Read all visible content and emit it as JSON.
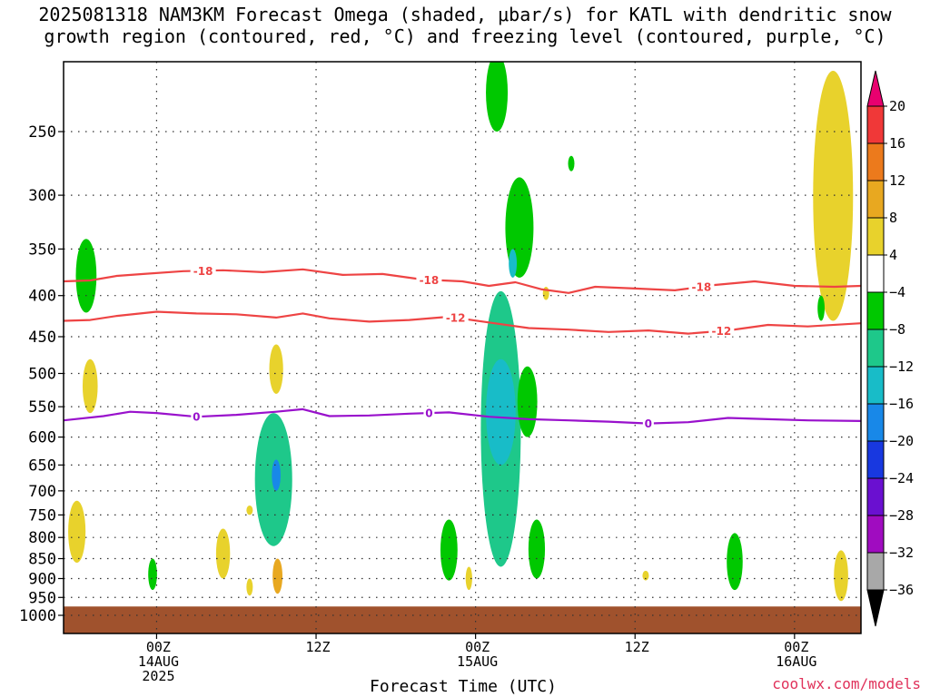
{
  "title": {
    "line1": "2025081318 NAM3KM Forecast Omega (shaded, μbar/s) for KATL with dendritic snow",
    "line2": "growth region (contoured, red, °C) and freezing level (contoured, purple, °C)"
  },
  "credit": "coolwx.com/models",
  "chart_data": {
    "type": "contour",
    "xlabel": "Forecast Time (UTC)",
    "ylabel": "",
    "y_axis": {
      "scale": "log",
      "inverted": true,
      "ylim": [
        1000,
        200
      ],
      "tick_values": [
        250,
        300,
        350,
        400,
        450,
        500,
        550,
        600,
        650,
        700,
        750,
        800,
        850,
        900,
        950,
        1000
      ],
      "tick_labels": [
        "250",
        "300",
        "350",
        "400",
        "450",
        "500",
        "550",
        "600",
        "650",
        "700",
        "750",
        "800",
        "850",
        "900",
        "950",
        "1000"
      ]
    },
    "x_axis": {
      "xlim_hours": [
        -7,
        53
      ],
      "ticks": [
        {
          "hour": 0,
          "label": [
            "00Z",
            "14AUG",
            "2025"
          ]
        },
        {
          "hour": 12,
          "label": [
            "12Z"
          ]
        },
        {
          "hour": 24,
          "label": [
            "00Z",
            "15AUG"
          ]
        },
        {
          "hour": 36,
          "label": [
            "12Z"
          ]
        },
        {
          "hour": 48,
          "label": [
            "00Z",
            "16AUG"
          ]
        }
      ]
    },
    "grid": true,
    "colorbar": {
      "labels": [
        "20",
        "16",
        "12",
        "8",
        "4",
        "−4",
        "−8",
        "−12",
        "−16",
        "−20",
        "−24",
        "−28",
        "−32",
        "−36"
      ],
      "colors": [
        "#e8006f",
        "#f03838",
        "#ec7a1c",
        "#e8a820",
        "#e8d22c",
        "#ffffff",
        "#00c800",
        "#1ec88a",
        "#18bcc8",
        "#1888e8",
        "#1838e0",
        "#6a10d0",
        "#a00cc0",
        "#a8a8a8",
        "#000000"
      ]
    },
    "contours": [
      {
        "field": "temperature",
        "value": -18,
        "color": "#ee4444",
        "points": [
          [
            -7,
            384
          ],
          [
            -5,
            383
          ],
          [
            -3,
            378
          ],
          [
            -1,
            376
          ],
          [
            2,
            373
          ],
          [
            5,
            372
          ],
          [
            8,
            374
          ],
          [
            11,
            371
          ],
          [
            14,
            377
          ],
          [
            17,
            376
          ],
          [
            20,
            382
          ],
          [
            23,
            384
          ],
          [
            25,
            389
          ],
          [
            27,
            385
          ],
          [
            29,
            393
          ],
          [
            31,
            397
          ],
          [
            33,
            390
          ],
          [
            36,
            392
          ],
          [
            39,
            394
          ],
          [
            42,
            388
          ],
          [
            45,
            384
          ],
          [
            48,
            389
          ],
          [
            51,
            390
          ],
          [
            53,
            389
          ]
        ],
        "labels": [
          {
            "hour": 3.5,
            "text": "-18"
          },
          {
            "hour": 20.5,
            "text": "-18"
          },
          {
            "hour": 41,
            "text": "-18"
          }
        ]
      },
      {
        "field": "temperature",
        "value": -12,
        "color": "#ee4444",
        "points": [
          [
            -7,
            430
          ],
          [
            -5,
            429
          ],
          [
            -3,
            424
          ],
          [
            0,
            419
          ],
          [
            3,
            421
          ],
          [
            6,
            422
          ],
          [
            9,
            426
          ],
          [
            11,
            421
          ],
          [
            13,
            427
          ],
          [
            16,
            431
          ],
          [
            19,
            429
          ],
          [
            22,
            425
          ],
          [
            25,
            432
          ],
          [
            28,
            439
          ],
          [
            31,
            441
          ],
          [
            34,
            444
          ],
          [
            37,
            442
          ],
          [
            40,
            446
          ],
          [
            43,
            442
          ],
          [
            46,
            435
          ],
          [
            49,
            437
          ],
          [
            53,
            433
          ]
        ],
        "labels": [
          {
            "hour": 22.5,
            "text": "-12"
          },
          {
            "hour": 42.5,
            "text": "-12"
          }
        ]
      },
      {
        "field": "temperature",
        "value": 0,
        "color": "#9911cc",
        "points": [
          [
            -7,
            572
          ],
          [
            -4,
            565
          ],
          [
            -2,
            558
          ],
          [
            0,
            560
          ],
          [
            3,
            566
          ],
          [
            6,
            563
          ],
          [
            9,
            558
          ],
          [
            11,
            554
          ],
          [
            13,
            565
          ],
          [
            16,
            564
          ],
          [
            19,
            561
          ],
          [
            22,
            559
          ],
          [
            25,
            566
          ],
          [
            28,
            570
          ],
          [
            31,
            572
          ],
          [
            34,
            574
          ],
          [
            37,
            577
          ],
          [
            40,
            575
          ],
          [
            43,
            568
          ],
          [
            46,
            570
          ],
          [
            49,
            572
          ],
          [
            53,
            573
          ]
        ],
        "labels": [
          {
            "hour": 3,
            "text": "0"
          },
          {
            "hour": 20.5,
            "text": "0"
          },
          {
            "hour": 37,
            "text": "0"
          }
        ]
      }
    ],
    "omega_blobs": [
      {
        "hour": -5.3,
        "p_top": 340,
        "p_bot": 420,
        "value": -6
      },
      {
        "hour": -5.0,
        "p_top": 480,
        "p_bot": 560,
        "value": 6
      },
      {
        "hour": -6.0,
        "p_top": 720,
        "p_bot": 860,
        "value": 6
      },
      {
        "hour": -0.3,
        "p_top": 850,
        "p_bot": 930,
        "value": -6
      },
      {
        "hour": 5.0,
        "p_top": 780,
        "p_bot": 900,
        "value": 6
      },
      {
        "hour": 7.0,
        "p_top": 730,
        "p_bot": 750,
        "value": 5
      },
      {
        "hour": 7.0,
        "p_top": 900,
        "p_bot": 945,
        "value": 5
      },
      {
        "hour": 9.0,
        "p_top": 460,
        "p_bot": 530,
        "value": 5
      },
      {
        "hour": 8.8,
        "p_top": 560,
        "p_bot": 820,
        "value": -10
      },
      {
        "hour": 9.0,
        "p_top": 640,
        "p_bot": 700,
        "value": -18
      },
      {
        "hour": 9.1,
        "p_top": 850,
        "p_bot": 940,
        "value": 8
      },
      {
        "hour": 22.0,
        "p_top": 760,
        "p_bot": 905,
        "value": -6
      },
      {
        "hour": 23.5,
        "p_top": 870,
        "p_bot": 930,
        "value": 5
      },
      {
        "hour": 25.6,
        "p_top": 200,
        "p_bot": 250,
        "value": -6
      },
      {
        "hour": 27.3,
        "p_top": 285,
        "p_bot": 380,
        "value": -7
      },
      {
        "hour": 26.8,
        "p_top": 350,
        "p_bot": 380,
        "value": -12
      },
      {
        "hour": 25.9,
        "p_top": 395,
        "p_bot": 870,
        "value": -8
      },
      {
        "hour": 25.9,
        "p_top": 480,
        "p_bot": 650,
        "value": -14
      },
      {
        "hour": 27.9,
        "p_top": 490,
        "p_bot": 600,
        "value": -6
      },
      {
        "hour": 29.3,
        "p_top": 390,
        "p_bot": 405,
        "value": 5
      },
      {
        "hour": 28.6,
        "p_top": 760,
        "p_bot": 900,
        "value": -6
      },
      {
        "hour": 31.2,
        "p_top": 268,
        "p_bot": 280,
        "value": -6
      },
      {
        "hour": 36.8,
        "p_top": 880,
        "p_bot": 905,
        "value": 6
      },
      {
        "hour": 43.5,
        "p_top": 790,
        "p_bot": 930,
        "value": -6
      },
      {
        "hour": 50.9,
        "p_top": 210,
        "p_bot": 430,
        "value": 5
      },
      {
        "hour": 50.0,
        "p_top": 400,
        "p_bot": 430,
        "value": -6
      },
      {
        "hour": 51.5,
        "p_top": 830,
        "p_bot": 960,
        "value": 6
      }
    ],
    "ground": {
      "p_top": 975,
      "color": "#a0522d"
    }
  }
}
